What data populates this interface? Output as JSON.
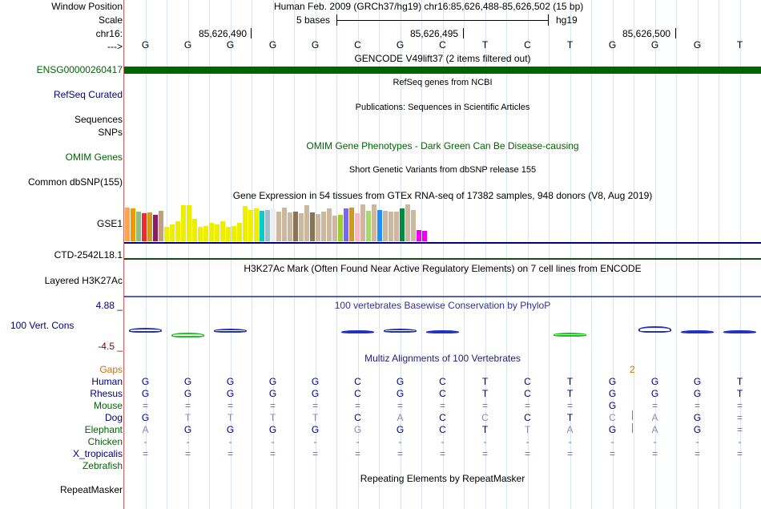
{
  "header": {
    "window_position_label": "Window Position",
    "window_position_value": "Human Feb. 2009 (GRCh37/hg19)   chr16:85,626,488-85,626,502 (15 bp)",
    "scale_label": "Scale",
    "scale_text": "5 bases",
    "scale_db": "hg19",
    "chrom_label": "chr16:",
    "strand_label": "--->",
    "positions": [
      "85,626,490",
      "85,626,495",
      "85,626,500"
    ]
  },
  "sequence": [
    "G",
    "G",
    "G",
    "G",
    "G",
    "C",
    "G",
    "C",
    "T",
    "C",
    "T",
    "G",
    "G",
    "G",
    "T"
  ],
  "tracks": {
    "gencode": {
      "title": "GENCODE V49lift37 (2 items filtered out)",
      "label": "ENSG00000260417",
      "color": "#006400"
    },
    "refseq": {
      "title": "RefSeq genes from NCBI",
      "label": "RefSeq Curated"
    },
    "publications": {
      "title": "Publications: Sequences in Scientific Articles",
      "label": "Sequences"
    },
    "snps": {
      "label": "SNPs"
    },
    "omim": {
      "title": "OMIM Gene Phenotypes - Dark Green Can Be Disease-causing",
      "label": "OMIM Genes"
    },
    "dbsnp": {
      "title": "Short Genetic Variants from dbSNP release 155",
      "label": "Common dbSNP(155)"
    },
    "gtex": {
      "title": "Gene Expression in 54 tissues from GTEx RNA-seq of 17382 samples, 948 donors (V8, Aug 2019)",
      "label": "GSE1"
    },
    "ctd": {
      "label": "CTD-2542L18.1"
    },
    "h3k27ac": {
      "title": "H3K27Ac Mark (Often Found Near Active Regulatory Elements) on 7 cell lines from ENCODE",
      "label": "Layered H3K27Ac"
    },
    "phylop": {
      "title": "100 vertebrates Basewise Conservation by PhyloP",
      "label": "100 Vert. Cons",
      "max": "4.88 _",
      "min": "-4.5 _"
    },
    "multiz": {
      "title": "Multiz Alignments of 100 Vertebrates",
      "gaps_label": "Gaps",
      "gap_count": "2"
    },
    "repeatmasker": {
      "title": "Repeating Elements by RepeatMasker",
      "label": "RepeatMasker"
    }
  },
  "alignment": {
    "species": [
      "Human",
      "Rhesus",
      "Mouse",
      "Dog",
      "Elephant",
      "Chicken",
      "X_tropicalis",
      "Zebrafish"
    ],
    "rows": [
      [
        "G",
        "G",
        "G",
        "G",
        "G",
        "C",
        "G",
        "C",
        "T",
        "C",
        "T",
        "G",
        "G",
        "G",
        "T"
      ],
      [
        "G",
        "G",
        "G",
        "G",
        "G",
        "C",
        "G",
        "C",
        "T",
        "C",
        "T",
        "G",
        "G",
        "G",
        "T"
      ],
      [
        "=",
        "=",
        "=",
        "=",
        "=",
        "=",
        "=",
        "=",
        "=",
        "=",
        "=",
        "G",
        "=",
        "=",
        "="
      ],
      [
        "G",
        "T",
        "T",
        "T",
        "T",
        "C",
        "A",
        "C",
        "C",
        "C",
        "T",
        "C",
        "A",
        "G",
        "="
      ],
      [
        "A",
        "G",
        "G",
        "G",
        "G",
        "G",
        "G",
        "C",
        "T",
        "T",
        "A",
        "G",
        "A",
        "G",
        "="
      ],
      [
        "-",
        "-",
        "-",
        "-",
        "-",
        "-",
        "-",
        "-",
        "-",
        "-",
        "-",
        "-",
        "-",
        "-",
        "-"
      ],
      [
        "=",
        "=",
        "=",
        "=",
        "=",
        "=",
        "=",
        "=",
        "=",
        "=",
        "=",
        "=",
        "=",
        "=",
        "="
      ],
      [
        "",
        "",
        "",
        "",
        "",
        "",
        "",
        "",
        "",
        "",
        "",
        "",
        "",
        "",
        ""
      ]
    ],
    "dim_cells": [
      [
        3,
        1
      ],
      [
        3,
        2
      ],
      [
        3,
        3
      ],
      [
        3,
        4
      ],
      [
        3,
        6
      ],
      [
        3,
        8
      ],
      [
        3,
        11
      ],
      [
        3,
        12
      ],
      [
        4,
        0
      ],
      [
        4,
        5
      ],
      [
        4,
        9
      ],
      [
        4,
        10
      ],
      [
        4,
        12
      ]
    ]
  },
  "gtex_data": {
    "values": [
      0.92,
      0.9,
      0.8,
      0.76,
      0.78,
      0.72,
      0.82,
      0.4,
      0.45,
      0.55,
      0.98,
      0.98,
      0.6,
      0.4,
      0.42,
      0.5,
      0.45,
      0.55,
      0.4,
      0.42,
      0.5,
      0.95,
      0.85,
      0.9,
      0.82,
      0.85,
      0.9,
      0.8,
      0.92,
      0.78,
      0.8,
      0.76,
      0.98,
      0.78,
      0.74,
      0.8,
      0.9,
      0.7,
      0.72,
      0.9,
      0.92,
      0.75,
      1.0,
      0.82,
      1.0,
      0.85,
      0.82,
      0.8,
      0.8,
      0.9,
      1.0,
      0.85,
      0.3,
      0.0
    ],
    "colors": [
      "#ffa54f",
      "#ee9a00",
      "#8fbc8f",
      "#ee2c2c",
      "#cd9b1d",
      "#8b1c62",
      "#c0a080",
      "#eeee00",
      "#eeee00",
      "#eeee00",
      "#eeee00",
      "#eeee00",
      "#eeee00",
      "#eeee00",
      "#eeee00",
      "#eeee00",
      "#eeee00",
      "#eeee00",
      "#eeee00",
      "#eeee00",
      "#eeee00",
      "#eeee00",
      "#eeee00",
      "#eeee00",
      "#00cdcd",
      "#9ac0cd",
      "#ededed",
      "#cdb79e",
      "#cdb79e",
      "#cdb79e",
      "#8b7355",
      "#cdb79e",
      "#cdb79e",
      "#8b7355",
      "#cdb79e",
      "#cdb79e",
      "#cdb79e",
      "#cdb79e",
      "#9acd32",
      "#7a67ee",
      "#cd9b1d",
      "#ffb6c1",
      "#cdb79e",
      "#a6d96a",
      "#cdb79e",
      "#1e90ff",
      "#cdb79e",
      "#cdb79e",
      "#cdb79e",
      "#008b45",
      "#cdb79e",
      "#cdb79e",
      "#ee00ee",
      "#ee00ee"
    ]
  },
  "phylop_data": {
    "columns": [
      0,
      1,
      2,
      5,
      6,
      7,
      10,
      12,
      13,
      14
    ],
    "values": [
      0.6,
      -0.6,
      0.5,
      0.2,
      0.5,
      0.1,
      -0.5,
      0.8,
      0.3,
      0.2
    ]
  }
}
